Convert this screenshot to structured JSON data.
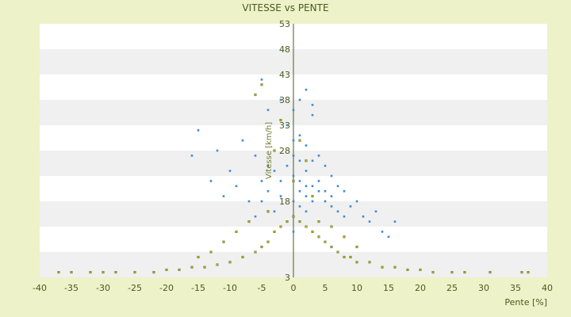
{
  "chart_data": {
    "type": "scatter",
    "title": "VITESSE vs PENTE",
    "xlabel": "Pente [%]",
    "ylabel": "Vitesse [km/h]",
    "xlim": [
      -40,
      40
    ],
    "ylim": [
      3,
      53
    ],
    "x_ticks": [
      -40,
      -35,
      -30,
      -25,
      -20,
      -15,
      -10,
      -5,
      0,
      5,
      10,
      15,
      20,
      25,
      30,
      35,
      40
    ],
    "y_ticks": [
      3,
      8,
      13,
      18,
      23,
      28,
      33,
      38,
      43,
      48,
      53
    ],
    "y_tick_labels_shown": [
      "3",
      "",
      "",
      "18",
      "",
      "28",
      "33",
      "38",
      "43",
      "48",
      "53"
    ],
    "grid": "horizontal bands",
    "legend": "none",
    "series": [
      {
        "color": "#3b8bd8",
        "description_points": "dense cloud centered near pente 0 to 3, vitesse 18-28",
        "points": [
          [
            0,
            23
          ],
          [
            1,
            22
          ],
          [
            2,
            24
          ],
          [
            -1,
            25
          ],
          [
            3,
            21
          ],
          [
            -2,
            22
          ],
          [
            4,
            20
          ],
          [
            0,
            27
          ],
          [
            1,
            26
          ],
          [
            2,
            19
          ],
          [
            -3,
            24
          ],
          [
            5,
            18
          ],
          [
            -4,
            20
          ],
          [
            6,
            17
          ],
          [
            -5,
            22
          ],
          [
            0,
            30
          ],
          [
            1,
            31
          ],
          [
            2,
            29
          ],
          [
            -1,
            33
          ],
          [
            3,
            35
          ],
          [
            -6,
            27
          ],
          [
            -8,
            30
          ],
          [
            -10,
            24
          ],
          [
            -12,
            28
          ],
          [
            -15,
            32
          ],
          [
            -16,
            27
          ],
          [
            7,
            16
          ],
          [
            8,
            15
          ],
          [
            9,
            17
          ],
          [
            10,
            18
          ],
          [
            11,
            15
          ],
          [
            12,
            14
          ],
          [
            13,
            16
          ],
          [
            14,
            12
          ],
          [
            15,
            11
          ],
          [
            16,
            14
          ],
          [
            -7,
            18
          ],
          [
            -9,
            21
          ],
          [
            -11,
            19
          ],
          [
            -13,
            22
          ],
          [
            0,
            36
          ],
          [
            1,
            38
          ],
          [
            2,
            40
          ],
          [
            3,
            37
          ],
          [
            -2,
            38
          ],
          [
            -4,
            36
          ],
          [
            -5,
            42
          ],
          [
            0,
            18
          ],
          [
            1,
            17
          ],
          [
            2,
            16
          ],
          [
            3,
            18
          ],
          [
            4,
            22
          ],
          [
            5,
            25
          ],
          [
            6,
            23
          ],
          [
            7,
            21
          ],
          [
            8,
            20
          ],
          [
            -6,
            15
          ],
          [
            -3,
            16
          ],
          [
            -1,
            14
          ],
          [
            0,
            12
          ],
          [
            1,
            20
          ],
          [
            2,
            21
          ],
          [
            -2,
            19
          ],
          [
            3,
            26
          ],
          [
            4,
            27
          ],
          [
            -3,
            28
          ],
          [
            -4,
            25
          ],
          [
            5,
            20
          ],
          [
            6,
            19
          ],
          [
            -5,
            18
          ]
        ]
      },
      {
        "color": "#a8b020",
        "description_points": "low-speed band along vitesse 5-15 spanning pente -37 to 37",
        "points": [
          [
            -37,
            4
          ],
          [
            -35,
            4
          ],
          [
            -32,
            4
          ],
          [
            -30,
            4
          ],
          [
            -28,
            4
          ],
          [
            -25,
            4
          ],
          [
            -22,
            4
          ],
          [
            -20,
            4.5
          ],
          [
            -18,
            4.5
          ],
          [
            -16,
            5
          ],
          [
            -14,
            5
          ],
          [
            -12,
            5.5
          ],
          [
            -10,
            6
          ],
          [
            -8,
            7
          ],
          [
            -6,
            8
          ],
          [
            -5,
            9
          ],
          [
            -4,
            10
          ],
          [
            -3,
            12
          ],
          [
            -2,
            13
          ],
          [
            -1,
            14
          ],
          [
            0,
            15
          ],
          [
            1,
            14
          ],
          [
            2,
            13
          ],
          [
            3,
            12
          ],
          [
            4,
            11
          ],
          [
            5,
            10
          ],
          [
            6,
            9
          ],
          [
            7,
            8
          ],
          [
            8,
            7
          ],
          [
            9,
            7
          ],
          [
            10,
            6
          ],
          [
            12,
            6
          ],
          [
            14,
            5
          ],
          [
            16,
            5
          ],
          [
            18,
            4.5
          ],
          [
            20,
            4.5
          ],
          [
            22,
            4
          ],
          [
            25,
            4
          ],
          [
            27,
            4
          ],
          [
            31,
            4
          ],
          [
            36,
            4
          ],
          [
            37,
            4
          ],
          [
            -9,
            12
          ],
          [
            -7,
            14
          ],
          [
            -11,
            10
          ],
          [
            -13,
            8
          ],
          [
            -15,
            7
          ],
          [
            6,
            13
          ],
          [
            8,
            11
          ],
          [
            10,
            9
          ],
          [
            -5,
            41
          ],
          [
            -6,
            39
          ],
          [
            -2,
            34
          ],
          [
            1,
            30
          ],
          [
            -3,
            28
          ],
          [
            2,
            26
          ],
          [
            4,
            14
          ],
          [
            -4,
            16
          ],
          [
            0,
            22
          ],
          [
            3,
            19
          ]
        ]
      }
    ]
  }
}
